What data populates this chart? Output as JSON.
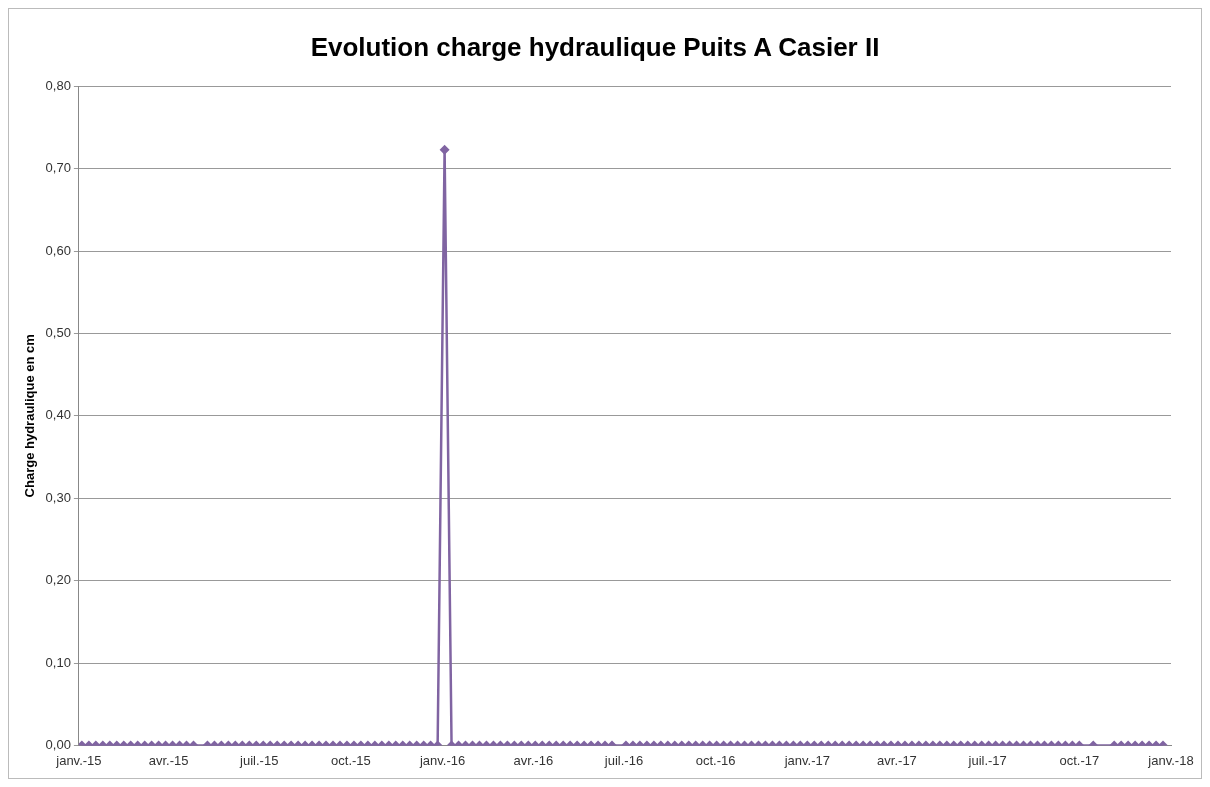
{
  "chart_data": {
    "type": "line",
    "title": "Evolution charge hydraulique Puits A Casier II",
    "ylabel": "Charge hydraulique en cm",
    "x": [
      "2015-01-04",
      "2015-01-11",
      "2015-01-18",
      "2015-01-25",
      "2015-02-01",
      "2015-02-08",
      "2015-02-15",
      "2015-02-22",
      "2015-03-01",
      "2015-03-08",
      "2015-03-15",
      "2015-03-22",
      "2015-03-29",
      "2015-04-05",
      "2015-04-12",
      "2015-04-19",
      "2015-04-26",
      "2015-05-10",
      "2015-05-17",
      "2015-05-24",
      "2015-05-31",
      "2015-06-07",
      "2015-06-14",
      "2015-06-21",
      "2015-06-28",
      "2015-07-05",
      "2015-07-12",
      "2015-07-19",
      "2015-07-26",
      "2015-08-02",
      "2015-08-09",
      "2015-08-16",
      "2015-08-23",
      "2015-08-30",
      "2015-09-06",
      "2015-09-13",
      "2015-09-20",
      "2015-09-27",
      "2015-10-04",
      "2015-10-11",
      "2015-10-18",
      "2015-10-25",
      "2015-11-01",
      "2015-11-08",
      "2015-11-15",
      "2015-11-22",
      "2015-11-29",
      "2015-12-06",
      "2015-12-13",
      "2015-12-20",
      "2015-12-27",
      "2016-01-03",
      "2016-01-10",
      "2016-01-17",
      "2016-01-24",
      "2016-01-31",
      "2016-02-07",
      "2016-02-14",
      "2016-02-21",
      "2016-02-28",
      "2016-03-06",
      "2016-03-13",
      "2016-03-20",
      "2016-03-27",
      "2016-04-03",
      "2016-04-10",
      "2016-04-17",
      "2016-04-24",
      "2016-05-01",
      "2016-05-08",
      "2016-05-15",
      "2016-05-22",
      "2016-05-29",
      "2016-06-05",
      "2016-06-12",
      "2016-06-19",
      "2016-07-03",
      "2016-07-10",
      "2016-07-17",
      "2016-07-24",
      "2016-07-31",
      "2016-08-07",
      "2016-08-14",
      "2016-08-21",
      "2016-08-28",
      "2016-09-04",
      "2016-09-11",
      "2016-09-18",
      "2016-09-25",
      "2016-10-02",
      "2016-10-09",
      "2016-10-16",
      "2016-10-23",
      "2016-10-30",
      "2016-11-06",
      "2016-11-13",
      "2016-11-20",
      "2016-11-27",
      "2016-12-04",
      "2016-12-11",
      "2016-12-18",
      "2016-12-25",
      "2017-01-01",
      "2017-01-08",
      "2017-01-15",
      "2017-01-22",
      "2017-01-29",
      "2017-02-05",
      "2017-02-12",
      "2017-02-19",
      "2017-02-26",
      "2017-03-05",
      "2017-03-12",
      "2017-03-19",
      "2017-03-26",
      "2017-04-02",
      "2017-04-09",
      "2017-04-16",
      "2017-04-23",
      "2017-04-30",
      "2017-05-07",
      "2017-05-14",
      "2017-05-21",
      "2017-05-28",
      "2017-06-04",
      "2017-06-11",
      "2017-06-18",
      "2017-06-25",
      "2017-07-02",
      "2017-07-09",
      "2017-07-16",
      "2017-07-23",
      "2017-07-30",
      "2017-08-06",
      "2017-08-13",
      "2017-08-20",
      "2017-08-27",
      "2017-09-03",
      "2017-09-10",
      "2017-09-17",
      "2017-09-24",
      "2017-10-01",
      "2017-10-15",
      "2017-11-05",
      "2017-11-12",
      "2017-11-19",
      "2017-11-26",
      "2017-12-03",
      "2017-12-10",
      "2017-12-17",
      "2017-12-24"
    ],
    "series": [
      {
        "color": "#8064a2",
        "values": [
          0,
          0,
          0,
          0,
          0,
          0,
          0,
          0,
          0,
          0,
          0,
          0,
          0,
          0,
          0,
          0,
          0,
          0,
          0,
          0,
          0,
          0,
          0,
          0,
          0,
          0,
          0,
          0,
          0,
          0,
          0,
          0,
          0,
          0,
          0,
          0,
          0,
          0,
          0,
          0,
          0,
          0,
          0,
          0,
          0,
          0,
          0,
          0,
          0,
          0,
          0,
          0.723,
          0,
          0,
          0,
          0,
          0,
          0,
          0,
          0,
          0,
          0,
          0,
          0,
          0,
          0,
          0,
          0,
          0,
          0,
          0,
          0,
          0,
          0,
          0,
          0,
          0,
          0,
          0,
          0,
          0,
          0,
          0,
          0,
          0,
          0,
          0,
          0,
          0,
          0,
          0,
          0,
          0,
          0,
          0,
          0,
          0,
          0,
          0,
          0,
          0,
          0,
          0,
          0,
          0,
          0,
          0,
          0,
          0,
          0,
          0,
          0,
          0,
          0,
          0,
          0,
          0,
          0,
          0,
          0,
          0,
          0,
          0,
          0,
          0,
          0,
          0,
          0,
          0,
          0,
          0,
          0,
          0,
          0,
          0,
          0,
          0,
          0,
          0,
          0,
          0,
          0,
          0,
          0,
          0,
          0,
          0,
          0,
          0,
          0,
          0
        ]
      }
    ],
    "xlim": [
      "2015-01-01",
      "2018-01-01"
    ],
    "xticks": [
      {
        "value": "2015-01-01",
        "label": "janv.-15"
      },
      {
        "value": "2015-04-01",
        "label": "avr.-15"
      },
      {
        "value": "2015-07-01",
        "label": "juil.-15"
      },
      {
        "value": "2015-10-01",
        "label": "oct.-15"
      },
      {
        "value": "2016-01-01",
        "label": "janv.-16"
      },
      {
        "value": "2016-04-01",
        "label": "avr.-16"
      },
      {
        "value": "2016-07-01",
        "label": "juil.-16"
      },
      {
        "value": "2016-10-01",
        "label": "oct.-16"
      },
      {
        "value": "2017-01-01",
        "label": "janv.-17"
      },
      {
        "value": "2017-04-01",
        "label": "avr.-17"
      },
      {
        "value": "2017-07-01",
        "label": "juil.-17"
      },
      {
        "value": "2017-10-01",
        "label": "oct.-17"
      },
      {
        "value": "2018-01-01",
        "label": "janv.-18"
      }
    ],
    "ylim": [
      0,
      0.8
    ],
    "yticks": [
      {
        "value": 0,
        "label": "0,00"
      },
      {
        "value": 0.1,
        "label": "0,10"
      },
      {
        "value": 0.2,
        "label": "0,20"
      },
      {
        "value": 0.3,
        "label": "0,30"
      },
      {
        "value": 0.4,
        "label": "0,40"
      },
      {
        "value": 0.5,
        "label": "0,50"
      },
      {
        "value": 0.6,
        "label": "0,60"
      },
      {
        "value": 0.7,
        "label": "0,70"
      },
      {
        "value": 0.8,
        "label": "0,80"
      }
    ],
    "grid": "y",
    "legend": false,
    "marker": "diamond",
    "line_style": "solid"
  }
}
